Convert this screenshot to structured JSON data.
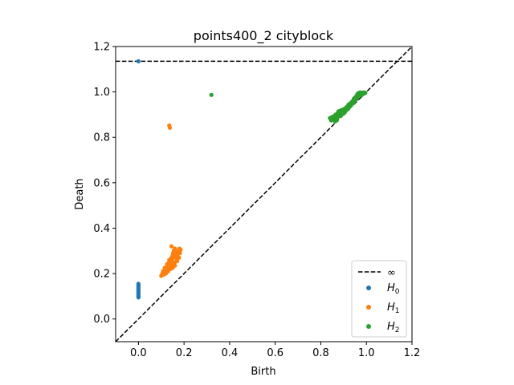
{
  "chart_data": {
    "type": "scatter",
    "title": "points400_2 cityblock",
    "xlabel": "Birth",
    "ylabel": "Death",
    "xlim": [
      -0.1,
      1.2
    ],
    "ylim": [
      -0.1,
      1.2
    ],
    "xticks": [
      "0.0",
      "0.2",
      "0.4",
      "0.6",
      "0.8",
      "1.0",
      "1.2"
    ],
    "yticks": [
      "0.0",
      "0.2",
      "0.4",
      "0.6",
      "0.8",
      "1.0",
      "1.2"
    ],
    "infinity_line_y": 1.135,
    "diagonal": true,
    "grid": false,
    "legend_position": "lower-right",
    "legend": {
      "infinity_label": "∞",
      "entries": [
        {
          "base": "H",
          "sub": "0",
          "color": "#1f77b4"
        },
        {
          "base": "H",
          "sub": "1",
          "color": "#ff7f0e"
        },
        {
          "base": "H",
          "sub": "2",
          "color": "#2ca02c"
        }
      ]
    },
    "series": [
      {
        "name": "H0",
        "color": "#1f77b4",
        "points": [
          [
            0.0,
            1.135
          ],
          [
            0.0,
            0.095
          ],
          [
            0.0,
            0.1
          ],
          [
            0.0,
            0.105
          ],
          [
            0.0,
            0.11
          ],
          [
            0.0,
            0.115
          ],
          [
            0.0,
            0.12
          ],
          [
            0.0,
            0.125
          ],
          [
            0.0,
            0.13
          ],
          [
            0.0,
            0.135
          ],
          [
            0.0,
            0.14
          ],
          [
            0.0,
            0.145
          ],
          [
            0.0,
            0.15
          ],
          [
            0.0,
            0.155
          ]
        ]
      },
      {
        "name": "H1",
        "color": "#ff7f0e",
        "points": [
          [
            0.135,
            0.852
          ],
          [
            0.138,
            0.842
          ],
          [
            0.1,
            0.19
          ],
          [
            0.105,
            0.2
          ],
          [
            0.11,
            0.195
          ],
          [
            0.112,
            0.205
          ],
          [
            0.115,
            0.21
          ],
          [
            0.12,
            0.215
          ],
          [
            0.12,
            0.2
          ],
          [
            0.125,
            0.22
          ],
          [
            0.128,
            0.225
          ],
          [
            0.13,
            0.23
          ],
          [
            0.13,
            0.21
          ],
          [
            0.133,
            0.235
          ],
          [
            0.135,
            0.245
          ],
          [
            0.138,
            0.24
          ],
          [
            0.14,
            0.25
          ],
          [
            0.14,
            0.22
          ],
          [
            0.142,
            0.26
          ],
          [
            0.145,
            0.255
          ],
          [
            0.145,
            0.27
          ],
          [
            0.148,
            0.265
          ],
          [
            0.15,
            0.28
          ],
          [
            0.15,
            0.24
          ],
          [
            0.152,
            0.29
          ],
          [
            0.155,
            0.275
          ],
          [
            0.155,
            0.3
          ],
          [
            0.158,
            0.285
          ],
          [
            0.16,
            0.31
          ],
          [
            0.16,
            0.25
          ],
          [
            0.162,
            0.295
          ],
          [
            0.165,
            0.27
          ],
          [
            0.168,
            0.26
          ],
          [
            0.17,
            0.28
          ],
          [
            0.172,
            0.29
          ],
          [
            0.175,
            0.3
          ],
          [
            0.178,
            0.27
          ],
          [
            0.18,
            0.31
          ],
          [
            0.182,
            0.29
          ],
          [
            0.185,
            0.305
          ],
          [
            0.145,
            0.32
          ],
          [
            0.135,
            0.26
          ],
          [
            0.125,
            0.24
          ],
          [
            0.115,
            0.225
          ],
          [
            0.108,
            0.21
          ],
          [
            0.17,
            0.255
          ],
          [
            0.16,
            0.235
          ],
          [
            0.15,
            0.225
          ],
          [
            0.14,
            0.235
          ],
          [
            0.13,
            0.245
          ]
        ]
      },
      {
        "name": "H2",
        "color": "#2ca02c",
        "points": [
          [
            0.32,
            0.987
          ],
          [
            0.84,
            0.885
          ],
          [
            0.845,
            0.875
          ],
          [
            0.85,
            0.89
          ],
          [
            0.855,
            0.88
          ],
          [
            0.86,
            0.895
          ],
          [
            0.862,
            0.87
          ],
          [
            0.865,
            0.9
          ],
          [
            0.87,
            0.885
          ],
          [
            0.872,
            0.905
          ],
          [
            0.875,
            0.89
          ],
          [
            0.878,
            0.915
          ],
          [
            0.88,
            0.9
          ],
          [
            0.885,
            0.91
          ],
          [
            0.888,
            0.895
          ],
          [
            0.89,
            0.92
          ],
          [
            0.895,
            0.905
          ],
          [
            0.9,
            0.915
          ],
          [
            0.902,
            0.925
          ],
          [
            0.905,
            0.91
          ],
          [
            0.91,
            0.93
          ],
          [
            0.912,
            0.92
          ],
          [
            0.915,
            0.935
          ],
          [
            0.92,
            0.925
          ],
          [
            0.922,
            0.945
          ],
          [
            0.925,
            0.935
          ],
          [
            0.93,
            0.95
          ],
          [
            0.932,
            0.94
          ],
          [
            0.935,
            0.955
          ],
          [
            0.94,
            0.96
          ],
          [
            0.942,
            0.95
          ],
          [
            0.945,
            0.97
          ],
          [
            0.948,
            0.96
          ],
          [
            0.95,
            0.975
          ],
          [
            0.952,
            0.965
          ],
          [
            0.955,
            0.98
          ],
          [
            0.958,
            0.97
          ],
          [
            0.96,
            0.99
          ],
          [
            0.962,
            0.98
          ],
          [
            0.965,
            0.995
          ],
          [
            0.968,
            0.985
          ],
          [
            0.97,
            0.99
          ],
          [
            0.972,
            0.998
          ],
          [
            0.975,
            0.992
          ],
          [
            0.978,
            0.985
          ],
          [
            0.98,
            0.997
          ],
          [
            0.982,
            0.99
          ],
          [
            0.985,
            0.995
          ],
          [
            0.988,
            0.992
          ],
          [
            0.99,
            0.998
          ],
          [
            0.995,
            0.996
          ],
          [
            0.87,
            0.875
          ],
          [
            0.89,
            0.9
          ],
          [
            0.9,
            0.905
          ]
        ]
      }
    ]
  }
}
